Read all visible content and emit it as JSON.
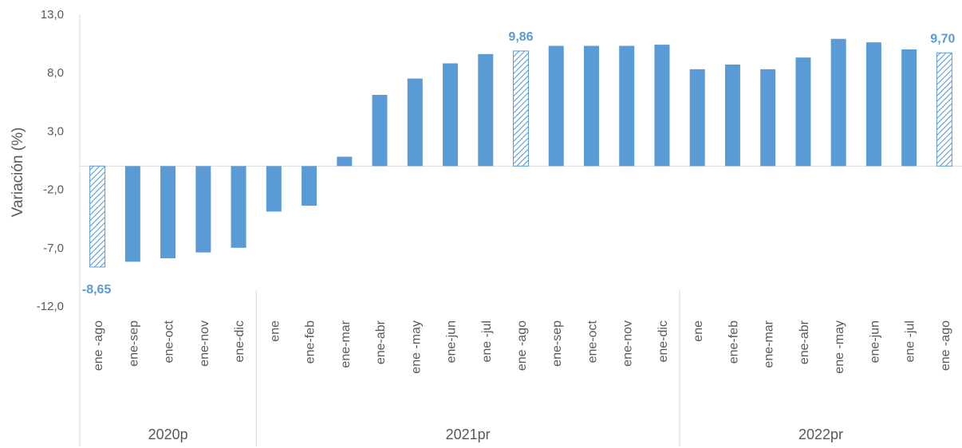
{
  "chart_data": {
    "type": "bar",
    "ylabel": "Variación (%)",
    "ylim": [
      -12,
      13
    ],
    "yticks": [
      "13,0",
      "8,0",
      "3,0",
      "-2,0",
      "-7,0",
      "-12,0"
    ],
    "ytick_values": [
      13,
      8,
      3,
      -2,
      -7,
      -12
    ],
    "groups": [
      {
        "label": "2020p",
        "count": 5
      },
      {
        "label": "2021pr",
        "count": 12
      },
      {
        "label": "2022pr",
        "count": 8
      }
    ],
    "categories": [
      "ene -ago",
      "ene-sep",
      "ene-oct",
      "ene-nov",
      "ene-dic",
      "ene",
      "ene-feb",
      "ene-mar",
      "ene-abr",
      "ene -may",
      "ene-jun",
      "ene -jul",
      "ene -ago",
      "ene-sep",
      "ene-oct",
      "ene-nov",
      "ene-dic",
      "ene",
      "ene-feb",
      "ene-mar",
      "ene-abr",
      "ene -may",
      "ene-jun",
      "ene -jul",
      "ene -ago"
    ],
    "values": [
      -8.65,
      -8.2,
      -7.9,
      -7.4,
      -7.0,
      -3.9,
      -3.4,
      0.8,
      6.1,
      7.5,
      8.8,
      9.6,
      9.86,
      10.3,
      10.3,
      10.3,
      10.4,
      8.3,
      8.7,
      8.3,
      9.3,
      10.9,
      10.6,
      10.0,
      9.7
    ],
    "highlighted": [
      0,
      12,
      24
    ],
    "data_labels": [
      {
        "index": 0,
        "text": "-8,65"
      },
      {
        "index": 12,
        "text": "9,86"
      },
      {
        "index": 24,
        "text": "9,70"
      }
    ],
    "colors": {
      "bar": "#5b9bd5",
      "label": "#5b9bd5",
      "text": "#595959",
      "axis": "#d9d9d9"
    }
  }
}
